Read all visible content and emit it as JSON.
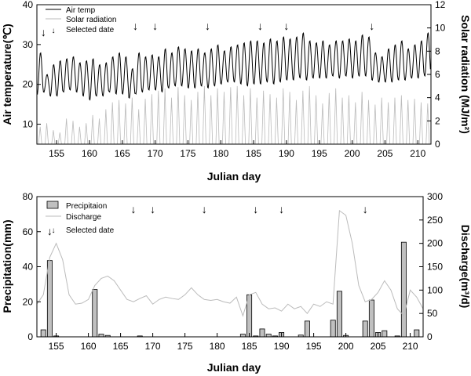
{
  "chart_data": [
    {
      "type": "line",
      "xlabel": "Julian day",
      "ylabel": "Air temperature(℃)",
      "ylabel_right": "Solar radiation (MJ/m²)",
      "xlim": [
        152,
        212
      ],
      "ylim": [
        5,
        40
      ],
      "ylim_right": [
        0,
        12
      ],
      "x_ticks": [
        155,
        160,
        165,
        170,
        175,
        180,
        185,
        190,
        195,
        200,
        205,
        210
      ],
      "y_ticks": [
        10,
        20,
        30,
        40
      ],
      "y_ticks_right": [
        0,
        2,
        4,
        6,
        8,
        10,
        12
      ],
      "legend_position": "top-left",
      "legend": [
        "Air temp",
        "Solar radiation",
        "Selected date"
      ],
      "selected_dates": [
        153,
        167,
        170,
        178,
        186,
        190,
        203
      ],
      "arrow_glyph": "↓",
      "series": [
        {
          "name": "Air temp",
          "axis": "left",
          "color": "#000000",
          "daily_min": [
            17.5,
            18,
            17,
            17,
            18,
            18.5,
            18,
            17,
            16,
            17,
            17,
            18,
            17.5,
            17.5,
            16.5,
            17.5,
            18,
            18.5,
            18.5,
            18,
            19,
            19.5,
            19.5,
            19,
            19,
            19.5,
            19,
            19.5,
            20,
            20.5,
            20.5,
            20,
            19.5,
            20,
            20,
            20.5,
            20,
            20.5,
            21,
            21,
            21.5,
            21,
            21.5,
            21.5,
            21.5,
            22,
            21.5,
            22,
            21.5,
            22,
            22,
            21,
            20.5,
            20.5,
            20.5,
            21,
            21,
            21.5,
            21.5,
            22
          ],
          "daily_max": [
            28,
            22.5,
            25,
            26,
            26.5,
            27,
            25.5,
            26,
            26.5,
            25,
            25.5,
            27,
            28,
            27,
            24,
            28,
            27,
            27.5,
            27,
            29,
            28,
            29.5,
            29,
            28.5,
            29,
            28,
            29,
            30,
            28.5,
            29.5,
            30,
            30.5,
            31,
            31,
            30.5,
            31.5,
            31,
            32,
            31.5,
            32,
            33,
            31,
            30.5,
            31,
            30,
            31,
            31,
            31.5,
            31,
            32.5,
            32,
            28,
            27,
            29,
            30,
            31,
            29,
            30,
            31,
            33
          ]
        },
        {
          "name": "Solar radiation",
          "axis": "right",
          "color": "#bbbbbb",
          "daily_peak": [
            1.5,
            1.8,
            1.2,
            1.0,
            2.2,
            2.0,
            1.5,
            1.8,
            2.5,
            2.2,
            3.0,
            3.6,
            3.8,
            3.5,
            4.0,
            3.0,
            3.9,
            4.3,
            4.6,
            4.8,
            4.0,
            4.9,
            4.2,
            3.8,
            4.5,
            5.0,
            4.2,
            4.8,
            4.5,
            4.9,
            5.0,
            4.2,
            4.8,
            4.0,
            4.6,
            4.3,
            4.0,
            4.8,
            4.5,
            3.8,
            4.6,
            5.0,
            4.2,
            3.5,
            4.4,
            4.8,
            4.0,
            4.2,
            3.6,
            4.5,
            3.8,
            3.4,
            4.0,
            3.6,
            4.0,
            4.2,
            3.8,
            3.9,
            3.6,
            3.5
          ]
        }
      ]
    },
    {
      "type": "bar",
      "xlabel": "Julian day",
      "ylabel": "Precipitation(mm)",
      "ylabel_right": "Discharge(m³/d)",
      "xlim": [
        152,
        212
      ],
      "ylim": [
        0,
        80
      ],
      "ylim_right": [
        0,
        300
      ],
      "x_ticks": [
        155,
        160,
        165,
        170,
        175,
        180,
        185,
        190,
        195,
        200,
        205,
        210
      ],
      "y_ticks": [
        0,
        20,
        40,
        60,
        80
      ],
      "y_ticks_right": [
        0,
        50,
        100,
        150,
        200,
        250,
        300
      ],
      "legend_position": "top-left",
      "legend": [
        "Precipitaion",
        "Discharge",
        "Selected date"
      ],
      "selected_dates": [
        154,
        167,
        170,
        178,
        186,
        190,
        203
      ],
      "series": [
        {
          "name": "Precipitaion",
          "axis": "left",
          "color": "#c0c0c0",
          "bars": [
            {
              "x": 153,
              "y": 4
            },
            {
              "x": 154,
              "y": 43.5
            },
            {
              "x": 155,
              "y": 0.5
            },
            {
              "x": 161,
              "y": 27
            },
            {
              "x": 162,
              "y": 1.5
            },
            {
              "x": 163,
              "y": 0.8
            },
            {
              "x": 168,
              "y": 0.5
            },
            {
              "x": 184,
              "y": 1.5
            },
            {
              "x": 185,
              "y": 24
            },
            {
              "x": 186,
              "y": 0.5
            },
            {
              "x": 187,
              "y": 4.5
            },
            {
              "x": 188,
              "y": 1.5
            },
            {
              "x": 189,
              "y": 0.5
            },
            {
              "x": 190,
              "y": 2.5
            },
            {
              "x": 193,
              "y": 1
            },
            {
              "x": 194,
              "y": 9
            },
            {
              "x": 198,
              "y": 9.5
            },
            {
              "x": 199,
              "y": 26
            },
            {
              "x": 200,
              "y": 0.8
            },
            {
              "x": 203,
              "y": 9
            },
            {
              "x": 204,
              "y": 21
            },
            {
              "x": 205,
              "y": 2.5
            },
            {
              "x": 206,
              "y": 3.5
            },
            {
              "x": 208,
              "y": 0.5
            },
            {
              "x": 209,
              "y": 54
            },
            {
              "x": 211,
              "y": 4
            }
          ]
        },
        {
          "name": "Discharge",
          "axis": "right",
          "color": "#bbbbbb",
          "x": [
            152,
            153,
            154,
            155,
            156,
            157,
            158,
            159,
            160,
            161,
            162,
            163,
            164,
            165,
            166,
            167,
            168,
            169,
            170,
            171,
            172,
            173,
            174,
            175,
            176,
            177,
            178,
            179,
            180,
            181,
            182,
            183,
            184,
            185,
            186,
            187,
            188,
            189,
            190,
            191,
            192,
            193,
            194,
            195,
            196,
            197,
            198,
            199,
            200,
            201,
            202,
            203,
            204,
            205,
            206,
            207,
            208,
            209,
            210,
            211,
            212
          ],
          "y": [
            70,
            90,
            170,
            200,
            165,
            90,
            70,
            72,
            80,
            110,
            125,
            130,
            120,
            100,
            80,
            75,
            82,
            88,
            70,
            80,
            85,
            82,
            80,
            90,
            105,
            90,
            80,
            78,
            80,
            75,
            72,
            85,
            45,
            90,
            95,
            70,
            60,
            62,
            55,
            70,
            60,
            65,
            50,
            70,
            65,
            75,
            70,
            270,
            260,
            200,
            110,
            75,
            80,
            95,
            120,
            100,
            60,
            45,
            100,
            85,
            60
          ]
        }
      ]
    }
  ]
}
